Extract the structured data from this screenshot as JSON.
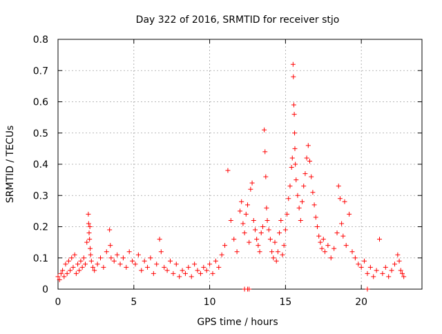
{
  "chart_data": {
    "type": "scatter",
    "title": "Day 322 of 2016, SRMTID for receiver stjo",
    "xlabel": "GPS time / hours",
    "ylabel": "SRMTID / TECUs",
    "xlim": [
      0,
      24
    ],
    "ylim": [
      0,
      0.8
    ],
    "grid": true,
    "x_ticks": [
      0,
      5,
      10,
      15,
      20
    ],
    "x_tick_labels": [
      "0",
      "5",
      "10",
      "15",
      "20"
    ],
    "y_ticks": [
      0,
      0.1,
      0.2,
      0.3,
      0.4,
      0.5,
      0.6,
      0.7,
      0.8
    ],
    "y_tick_labels": [
      "0",
      "0.1",
      "0.2",
      "0.3",
      "0.4",
      "0.5",
      "0.6",
      "0.7",
      "0.8"
    ],
    "marker": "+",
    "series": [
      {
        "name": "SRMTID",
        "color": "#ff0000",
        "x": [
          0.0,
          0.1,
          0.2,
          0.3,
          0.4,
          0.5,
          0.6,
          0.7,
          0.8,
          0.9,
          1.0,
          1.1,
          1.2,
          1.3,
          1.4,
          1.5,
          1.6,
          1.7,
          1.8,
          1.9,
          2.0,
          2.02,
          2.05,
          2.08,
          2.1,
          2.12,
          2.15,
          2.2,
          2.3,
          2.4,
          2.6,
          2.8,
          3.0,
          3.2,
          3.4,
          3.45,
          3.5,
          3.7,
          3.9,
          4.1,
          4.3,
          4.5,
          4.7,
          4.9,
          5.1,
          5.3,
          5.5,
          5.7,
          5.9,
          6.1,
          6.3,
          6.5,
          6.7,
          6.8,
          7.0,
          7.2,
          7.4,
          7.6,
          7.8,
          8.0,
          8.2,
          8.4,
          8.6,
          8.8,
          9.0,
          9.2,
          9.4,
          9.6,
          9.8,
          10.0,
          10.2,
          10.4,
          10.6,
          10.8,
          11.0,
          11.2,
          11.4,
          11.6,
          11.8,
          12.0,
          12.1,
          12.2,
          12.3,
          12.4,
          12.5,
          12.6,
          12.7,
          12.8,
          12.9,
          13.0,
          13.1,
          13.2,
          13.3,
          13.4,
          13.5,
          13.6,
          13.65,
          13.7,
          13.75,
          13.8,
          13.9,
          14.0,
          14.1,
          14.2,
          14.3,
          14.4,
          14.5,
          14.6,
          14.7,
          14.8,
          14.9,
          15.0,
          15.1,
          15.2,
          15.3,
          15.4,
          15.45,
          15.5,
          15.52,
          15.55,
          15.58,
          15.6,
          15.62,
          15.65,
          15.7,
          15.8,
          15.9,
          16.0,
          16.1,
          16.2,
          16.3,
          16.4,
          16.5,
          16.6,
          16.7,
          16.8,
          16.9,
          17.0,
          17.1,
          17.2,
          17.3,
          17.4,
          17.5,
          17.6,
          17.8,
          18.0,
          18.2,
          18.4,
          18.5,
          18.6,
          18.7,
          18.8,
          18.9,
          19.0,
          19.2,
          19.4,
          19.6,
          19.8,
          20.0,
          20.2,
          20.4,
          20.6,
          20.8,
          21.0,
          21.2,
          21.4,
          21.6,
          21.8,
          22.0,
          22.2,
          22.4,
          22.5,
          22.6,
          22.7,
          22.8,
          12.3,
          12.5,
          12.6,
          20.4
        ],
        "y": [
          0.04,
          0.03,
          0.05,
          0.06,
          0.04,
          0.08,
          0.05,
          0.09,
          0.06,
          0.1,
          0.07,
          0.11,
          0.05,
          0.08,
          0.06,
          0.09,
          0.07,
          0.1,
          0.08,
          0.15,
          0.24,
          0.21,
          0.18,
          0.16,
          0.2,
          0.13,
          0.11,
          0.09,
          0.07,
          0.06,
          0.08,
          0.1,
          0.07,
          0.12,
          0.19,
          0.14,
          0.1,
          0.09,
          0.11,
          0.08,
          0.1,
          0.07,
          0.12,
          0.09,
          0.08,
          0.11,
          0.06,
          0.09,
          0.07,
          0.1,
          0.05,
          0.08,
          0.16,
          0.12,
          0.07,
          0.06,
          0.09,
          0.05,
          0.08,
          0.04,
          0.06,
          0.05,
          0.07,
          0.04,
          0.08,
          0.06,
          0.05,
          0.07,
          0.06,
          0.08,
          0.05,
          0.09,
          0.07,
          0.11,
          0.14,
          0.38,
          0.22,
          0.16,
          0.12,
          0.25,
          0.28,
          0.21,
          0.18,
          0.24,
          0.27,
          0.15,
          0.32,
          0.34,
          0.22,
          0.19,
          0.16,
          0.14,
          0.12,
          0.18,
          0.2,
          0.51,
          0.44,
          0.36,
          0.26,
          0.22,
          0.19,
          0.16,
          0.12,
          0.1,
          0.15,
          0.09,
          0.12,
          0.18,
          0.22,
          0.11,
          0.14,
          0.19,
          0.24,
          0.29,
          0.33,
          0.39,
          0.42,
          0.72,
          0.68,
          0.59,
          0.56,
          0.5,
          0.45,
          0.4,
          0.35,
          0.3,
          0.26,
          0.22,
          0.28,
          0.33,
          0.37,
          0.42,
          0.46,
          0.41,
          0.36,
          0.31,
          0.27,
          0.23,
          0.2,
          0.17,
          0.15,
          0.13,
          0.16,
          0.12,
          0.14,
          0.1,
          0.13,
          0.18,
          0.33,
          0.29,
          0.21,
          0.17,
          0.28,
          0.14,
          0.24,
          0.12,
          0.1,
          0.08,
          0.07,
          0.09,
          0.05,
          0.07,
          0.04,
          0.06,
          0.16,
          0.05,
          0.07,
          0.04,
          0.06,
          0.08,
          0.11,
          0.09,
          0.06,
          0.05,
          0.04,
          0.0,
          0.0,
          0.0,
          0.0
        ]
      }
    ]
  }
}
